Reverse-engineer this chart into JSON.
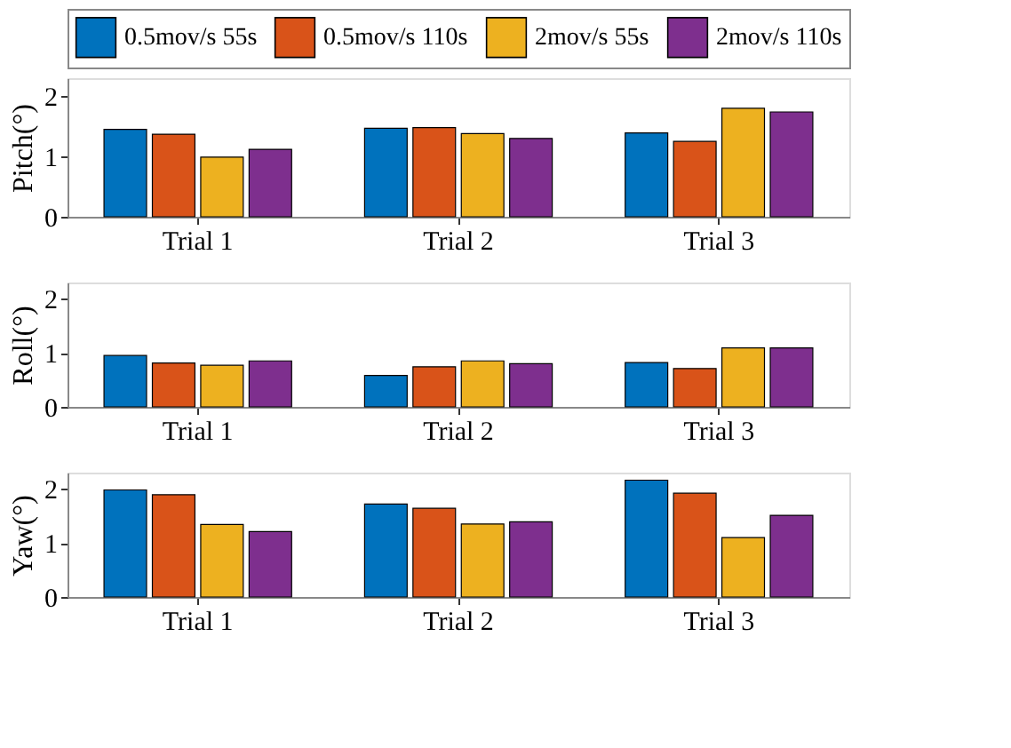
{
  "chart_data": [
    {
      "type": "bar",
      "ylabel": "Pitch(°)",
      "categories": [
        "Trial 1",
        "Trial 2",
        "Trial 3"
      ],
      "ylim": [
        0,
        2.3
      ],
      "yticks": [
        0,
        1,
        2
      ],
      "grid": false,
      "legend": "top",
      "series": [
        {
          "name": "0.5mov/s 55s",
          "color": "#0072bd",
          "values": [
            1.45,
            1.47,
            1.39
          ]
        },
        {
          "name": "0.5mov/s 110s",
          "color": "#d95319",
          "values": [
            1.37,
            1.48,
            1.25
          ]
        },
        {
          "name": "2mov/s 55s",
          "color": "#edb120",
          "values": [
            0.99,
            1.38,
            1.8
          ]
        },
        {
          "name": "2mov/s 110s",
          "color": "#7e2f8e",
          "values": [
            1.12,
            1.3,
            1.74
          ]
        }
      ]
    },
    {
      "type": "bar",
      "ylabel": "Roll(°)",
      "categories": [
        "Trial 1",
        "Trial 2",
        "Trial 3"
      ],
      "ylim": [
        0,
        2.3
      ],
      "yticks": [
        0,
        1,
        2
      ],
      "grid": false,
      "series": [
        {
          "color": "#0072bd",
          "values": [
            0.95,
            0.58,
            0.82
          ]
        },
        {
          "color": "#d95319",
          "values": [
            0.81,
            0.74,
            0.71
          ]
        },
        {
          "color": "#edb120",
          "values": [
            0.77,
            0.85,
            1.09
          ]
        },
        {
          "color": "#7e2f8e",
          "values": [
            0.85,
            0.8,
            1.09
          ]
        }
      ]
    },
    {
      "type": "bar",
      "ylabel": "Yaw(°)",
      "categories": [
        "Trial 1",
        "Trial 2",
        "Trial 3"
      ],
      "ylim": [
        0,
        2.3
      ],
      "yticks": [
        0,
        1,
        2
      ],
      "grid": false,
      "series": [
        {
          "color": "#0072bd",
          "values": [
            1.98,
            1.72,
            2.16
          ]
        },
        {
          "color": "#d95319",
          "values": [
            1.89,
            1.64,
            1.92
          ]
        },
        {
          "color": "#edb120",
          "values": [
            1.34,
            1.35,
            1.1
          ]
        },
        {
          "color": "#7e2f8e",
          "values": [
            1.21,
            1.39,
            1.51
          ]
        }
      ]
    }
  ]
}
